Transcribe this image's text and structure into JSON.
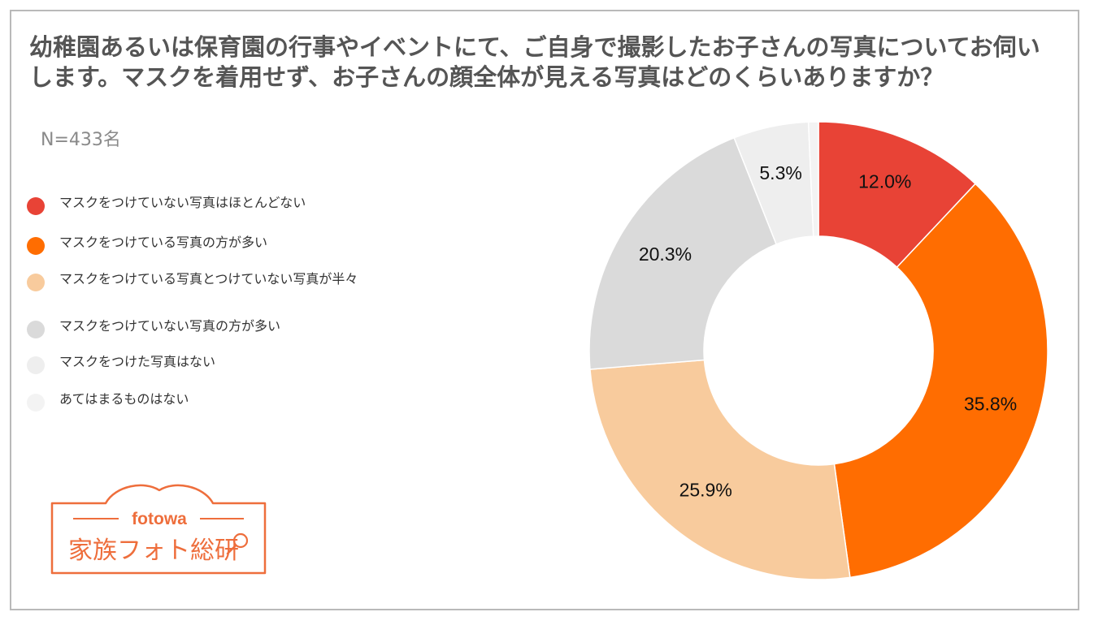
{
  "title": "幼稚園あるいは保育園の行事やイベントにて、ご自身で撮影したお子さんの写真についてお伺いします。マスクを着用せず、お子さんの顔全体が見える写真はどのくらいありますか？",
  "subtitle": "N=433名",
  "logo": {
    "brand": "fotowa",
    "name": "家族フォト総研"
  },
  "chart_data": {
    "type": "pie",
    "donut": true,
    "legend_position": "left",
    "slices": [
      {
        "label": "マスクをつけていない写真はほとんどない",
        "value": 12.0,
        "value_label": "12.0%",
        "color": "#e84336"
      },
      {
        "label": "マスクをつけている写真の方が多い",
        "value": 35.8,
        "value_label": "35.8%",
        "color": "#ff6d01"
      },
      {
        "label": "マスクをつけている写真とつけていない写真が半々",
        "value": 25.9,
        "value_label": "25.9%",
        "color": "#f8cb9d"
      },
      {
        "label": "マスクをつけていない写真の方が多い",
        "value": 20.3,
        "value_label": "20.3%",
        "color": "#dadada"
      },
      {
        "label": "マスクをつけた写真はない",
        "value": 5.3,
        "value_label": "5.3%",
        "color": "#eeeeee"
      },
      {
        "label": "あてはまるものはない",
        "value": 0.7,
        "value_label": "",
        "color": "#f3f3f3"
      }
    ]
  }
}
